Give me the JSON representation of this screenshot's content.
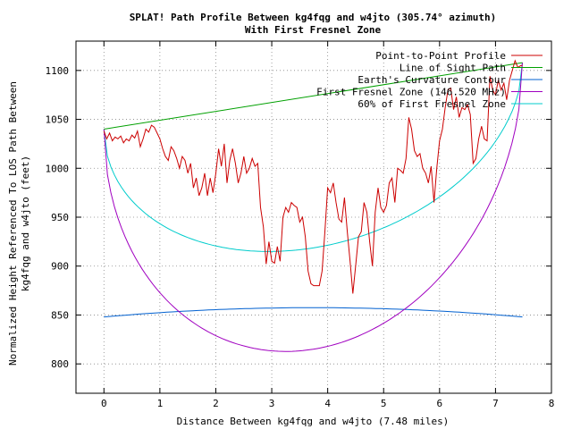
{
  "chart_data": {
    "type": "line",
    "title": "SPLAT! Path Profile Between kg4fqg and w4jto (305.74° azimuth)",
    "subtitle": "With First Fresnel Zone",
    "xlabel": "Distance Between kg4fqg and w4jto (7.48 miles)",
    "ylabel_line1": "Normalized Height Referenced To LOS Path Between",
    "ylabel_line2": "kg4fqg and w4jto (feet)",
    "xlim": [
      -0.5,
      8
    ],
    "ylim": [
      770,
      1130
    ],
    "x_ticks": [
      0,
      1,
      2,
      3,
      4,
      5,
      6,
      7,
      8
    ],
    "y_ticks": [
      800,
      850,
      900,
      950,
      1000,
      1050,
      1100
    ],
    "legend_position": "top-right",
    "series": [
      {
        "name": "Point-to-Point Profile",
        "color": "#cc0000",
        "x": [
          0,
          0.05,
          0.1,
          0.15,
          0.2,
          0.25,
          0.3,
          0.35,
          0.4,
          0.45,
          0.5,
          0.55,
          0.6,
          0.65,
          0.7,
          0.75,
          0.8,
          0.85,
          0.9,
          0.95,
          1.0,
          1.05,
          1.1,
          1.15,
          1.2,
          1.25,
          1.3,
          1.35,
          1.4,
          1.45,
          1.5,
          1.55,
          1.6,
          1.65,
          1.7,
          1.75,
          1.8,
          1.85,
          1.9,
          1.95,
          2.0,
          2.05,
          2.1,
          2.15,
          2.2,
          2.25,
          2.3,
          2.35,
          2.4,
          2.45,
          2.5,
          2.55,
          2.6,
          2.65,
          2.7,
          2.75,
          2.8,
          2.85,
          2.9,
          2.95,
          3.0,
          3.05,
          3.1,
          3.15,
          3.2,
          3.25,
          3.3,
          3.35,
          3.4,
          3.45,
          3.5,
          3.55,
          3.6,
          3.65,
          3.7,
          3.75,
          3.8,
          3.85,
          3.9,
          3.95,
          4.0,
          4.05,
          4.1,
          4.15,
          4.2,
          4.25,
          4.3,
          4.35,
          4.4,
          4.45,
          4.5,
          4.55,
          4.6,
          4.65,
          4.7,
          4.75,
          4.8,
          4.85,
          4.9,
          4.95,
          5.0,
          5.05,
          5.1,
          5.15,
          5.2,
          5.25,
          5.3,
          5.35,
          5.4,
          5.45,
          5.5,
          5.55,
          5.6,
          5.65,
          5.7,
          5.75,
          5.8,
          5.85,
          5.9,
          5.95,
          6.0,
          6.05,
          6.1,
          6.15,
          6.2,
          6.25,
          6.3,
          6.35,
          6.4,
          6.45,
          6.5,
          6.55,
          6.6,
          6.65,
          6.7,
          6.75,
          6.8,
          6.85,
          6.9,
          6.95,
          7.0,
          7.05,
          7.1,
          7.15,
          7.2,
          7.25,
          7.3,
          7.35,
          7.4,
          7.45,
          7.48
        ],
        "values": [
          1038,
          1030,
          1036,
          1028,
          1032,
          1030,
          1033,
          1026,
          1030,
          1028,
          1034,
          1031,
          1038,
          1022,
          1030,
          1040,
          1037,
          1044,
          1042,
          1036,
          1030,
          1020,
          1012,
          1008,
          1022,
          1018,
          1010,
          1000,
          1012,
          1008,
          995,
          1005,
          980,
          990,
          972,
          980,
          995,
          972,
          990,
          975,
          995,
          1020,
          1002,
          1025,
          985,
          1008,
          1020,
          1005,
          985,
          995,
          1012,
          995,
          1000,
          1010,
          1002,
          1005,
          960,
          940,
          902,
          925,
          905,
          903,
          920,
          905,
          950,
          960,
          955,
          965,
          962,
          960,
          945,
          950,
          930,
          895,
          882,
          880,
          880,
          880,
          895,
          935,
          980,
          975,
          985,
          965,
          948,
          945,
          970,
          935,
          905,
          872,
          900,
          930,
          935,
          965,
          955,
          925,
          900,
          955,
          980,
          960,
          955,
          962,
          985,
          990,
          965,
          1000,
          998,
          995,
          1010,
          1052,
          1040,
          1018,
          1012,
          1015,
          1000,
          995,
          985,
          1002,
          965,
          1000,
          1028,
          1040,
          1062,
          1080,
          1082,
          1060,
          1073,
          1052,
          1062,
          1060,
          1065,
          1055,
          1005,
          1010,
          1030,
          1043,
          1030,
          1028,
          1094,
          1080,
          1075,
          1090,
          1080,
          1087,
          1070,
          1090,
          1100,
          1110,
          1103,
          1105,
          1105
        ]
      },
      {
        "name": "Line of Sight Path",
        "color": "#00a000",
        "x": [
          0,
          7.48
        ],
        "values": [
          1040,
          1108
        ]
      },
      {
        "name": "Earth's Curvature Contour",
        "color": "#0060d0",
        "x": [
          0,
          7.48
        ],
        "curve": "earth",
        "endpoint_value": 848,
        "center_value": 857.5
      },
      {
        "name": "First Fresnel Zone (146.520 MHz)",
        "color": "#a000c0",
        "x": [
          0,
          7.48
        ],
        "curve": "fresnel",
        "fraction": 1.0
      },
      {
        "name": "60% of First Fresnel Zone",
        "color": "#00cccc",
        "x": [
          0,
          7.48
        ],
        "curve": "fresnel",
        "fraction": 0.6
      }
    ]
  }
}
